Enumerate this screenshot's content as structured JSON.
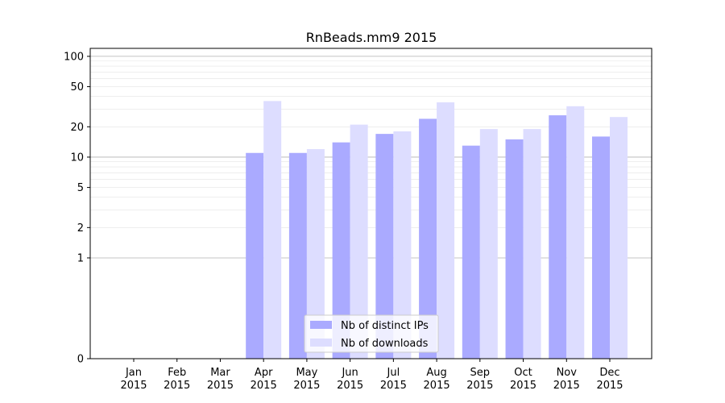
{
  "chart_data": {
    "type": "bar",
    "title": "RnBeads.mm9 2015",
    "xlabel": "",
    "ylabel": "",
    "y_scale": "symlog",
    "ylim": [
      0,
      120
    ],
    "y_ticks": [
      0,
      1,
      2,
      5,
      10,
      20,
      50,
      100
    ],
    "y_tick_labels": [
      "0",
      "1",
      "2",
      "5",
      "10",
      "20",
      "50",
      "100"
    ],
    "grid": "horizontal",
    "legend_position": "bottom-center",
    "categories": [
      [
        "Jan",
        "2015"
      ],
      [
        "Feb",
        "2015"
      ],
      [
        "Mar",
        "2015"
      ],
      [
        "Apr",
        "2015"
      ],
      [
        "May",
        "2015"
      ],
      [
        "Jun",
        "2015"
      ],
      [
        "Jul",
        "2015"
      ],
      [
        "Aug",
        "2015"
      ],
      [
        "Sep",
        "2015"
      ],
      [
        "Oct",
        "2015"
      ],
      [
        "Nov",
        "2015"
      ],
      [
        "Dec",
        "2015"
      ]
    ],
    "series": [
      {
        "name": "Nb of distinct IPs",
        "color": "#aaaaff",
        "values": [
          0,
          0,
          0,
          11,
          11,
          14,
          17,
          24,
          13,
          15,
          26,
          16
        ]
      },
      {
        "name": "Nb of downloads",
        "color": "#ddddff",
        "values": [
          0,
          0,
          0,
          36,
          12,
          21,
          18,
          35,
          19,
          19,
          32,
          25
        ]
      }
    ]
  }
}
